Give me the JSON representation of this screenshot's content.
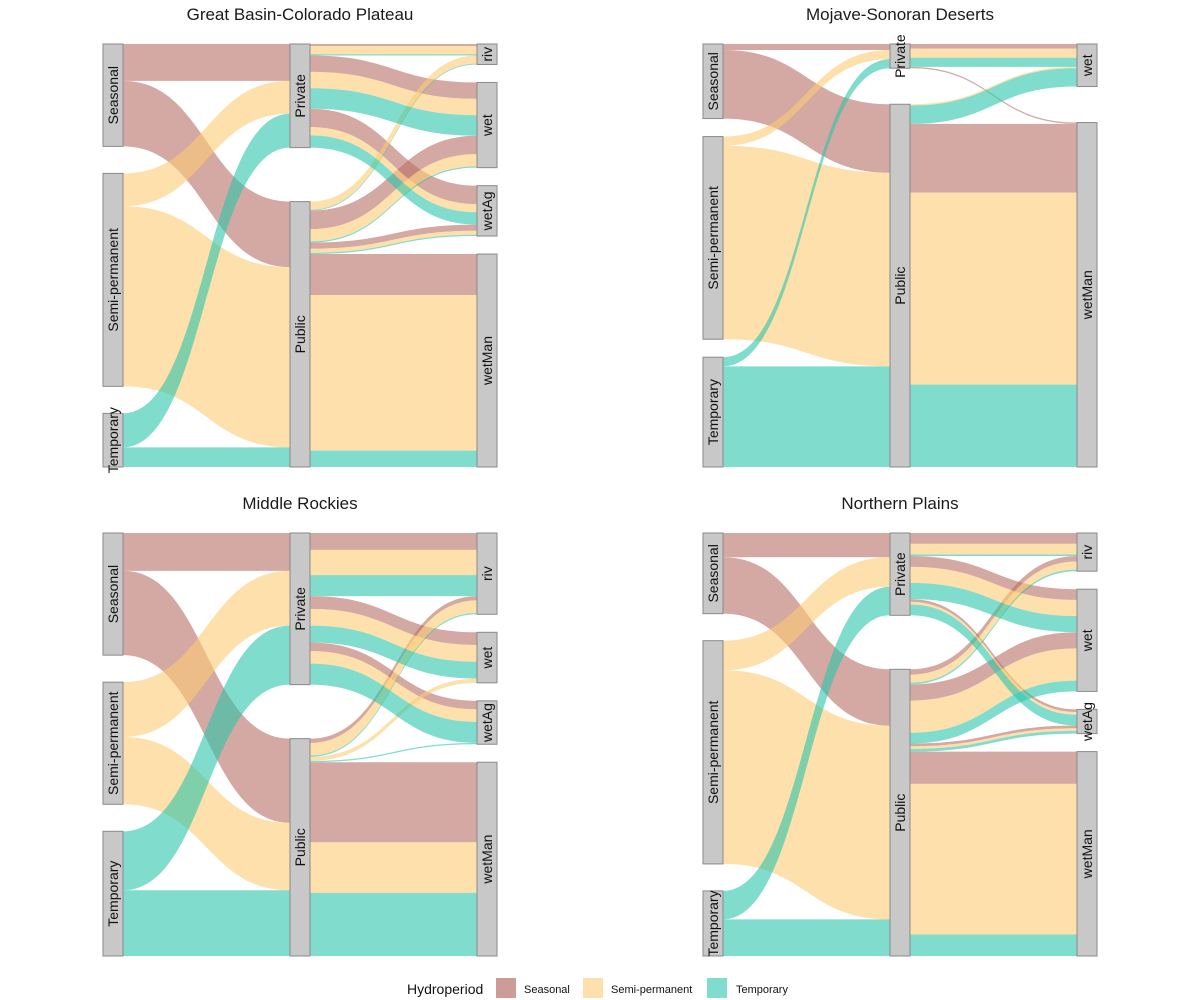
{
  "colors": {
    "Seasonal": "#b9726a",
    "Semi-permanent": "#fbcc73",
    "Temporary": "#2cc4aa",
    "node_fill": "#c8c8c8",
    "node_stroke": "#8a8a8a"
  },
  "legend": {
    "title": "Hydroperiod",
    "items": [
      "Seasonal",
      "Semi-permanent",
      "Temporary"
    ]
  },
  "chart_data": [
    {
      "type": "alluvial",
      "title": "Great Basin-Colorado Plateau",
      "axes": [
        [
          "Seasonal",
          "Semi-permanent",
          "Temporary"
        ],
        [
          "Private",
          "Public"
        ],
        [
          "riv",
          "wet",
          "wetAg",
          "wetMan"
        ]
      ],
      "flows": [
        {
          "hydroperiod": "Seasonal",
          "owner": "Private",
          "target": "riv",
          "value": 0.5
        },
        {
          "hydroperiod": "Seasonal",
          "owner": "Private",
          "target": "wet",
          "value": 4
        },
        {
          "hydroperiod": "Seasonal",
          "owner": "Private",
          "target": "wetAg",
          "value": 4.5
        },
        {
          "hydroperiod": "Seasonal",
          "owner": "Public",
          "target": "wet",
          "value": 4.5
        },
        {
          "hydroperiod": "Seasonal",
          "owner": "Public",
          "target": "wetAg",
          "value": 1.5
        },
        {
          "hydroperiod": "Seasonal",
          "owner": "Public",
          "target": "wetMan",
          "value": 10
        },
        {
          "hydroperiod": "Semi-permanent",
          "owner": "Private",
          "target": "riv",
          "value": 2
        },
        {
          "hydroperiod": "Semi-permanent",
          "owner": "Private",
          "target": "wet",
          "value": 4
        },
        {
          "hydroperiod": "Semi-permanent",
          "owner": "Private",
          "target": "wetAg",
          "value": 2
        },
        {
          "hydroperiod": "Semi-permanent",
          "owner": "Public",
          "target": "riv",
          "value": 2
        },
        {
          "hydroperiod": "Semi-permanent",
          "owner": "Public",
          "target": "wet",
          "value": 3
        },
        {
          "hydroperiod": "Semi-permanent",
          "owner": "Public",
          "target": "wetAg",
          "value": 1
        },
        {
          "hydroperiod": "Semi-permanent",
          "owner": "Public",
          "target": "wetMan",
          "value": 38
        },
        {
          "hydroperiod": "Temporary",
          "owner": "Private",
          "target": "riv",
          "value": 0.3
        },
        {
          "hydroperiod": "Temporary",
          "owner": "Private",
          "target": "wet",
          "value": 5
        },
        {
          "hydroperiod": "Temporary",
          "owner": "Private",
          "target": "wetAg",
          "value": 3
        },
        {
          "hydroperiod": "Temporary",
          "owner": "Public",
          "target": "riv",
          "value": 0.2
        },
        {
          "hydroperiod": "Temporary",
          "owner": "Public",
          "target": "wet",
          "value": 0.3
        },
        {
          "hydroperiod": "Temporary",
          "owner": "Public",
          "target": "wetAg",
          "value": 0.3
        },
        {
          "hydroperiod": "Temporary",
          "owner": "Public",
          "target": "wetMan",
          "value": 4
        }
      ]
    },
    {
      "type": "alluvial",
      "title": "Mojave-Sonoran Deserts",
      "axes": [
        [
          "Seasonal",
          "Semi-permanent",
          "Temporary"
        ],
        [
          "Private",
          "Public"
        ],
        [
          "wet",
          "wetMan"
        ]
      ],
      "flows": [
        {
          "hydroperiod": "Seasonal",
          "owner": "Private",
          "target": "wet",
          "value": 1
        },
        {
          "hydroperiod": "Seasonal",
          "owner": "Private",
          "target": "wetMan",
          "value": 0.3
        },
        {
          "hydroperiod": "Seasonal",
          "owner": "Public",
          "target": "wetMan",
          "value": 15
        },
        {
          "hydroperiod": "Semi-permanent",
          "owner": "Private",
          "target": "wet",
          "value": 2
        },
        {
          "hydroperiod": "Semi-permanent",
          "owner": "Public",
          "target": "wet",
          "value": 0.3
        },
        {
          "hydroperiod": "Semi-permanent",
          "owner": "Public",
          "target": "wetMan",
          "value": 42
        },
        {
          "hydroperiod": "Temporary",
          "owner": "Private",
          "target": "wet",
          "value": 2
        },
        {
          "hydroperiod": "Temporary",
          "owner": "Public",
          "target": "wet",
          "value": 4
        },
        {
          "hydroperiod": "Temporary",
          "owner": "Public",
          "target": "wetMan",
          "value": 18
        }
      ]
    },
    {
      "type": "alluvial",
      "title": "Middle Rockies",
      "axes": [
        [
          "Seasonal",
          "Semi-permanent",
          "Temporary"
        ],
        [
          "Private",
          "Public"
        ],
        [
          "riv",
          "wet",
          "wetAg",
          "wetMan"
        ]
      ],
      "flows": [
        {
          "hydroperiod": "Seasonal",
          "owner": "Private",
          "target": "riv",
          "value": 4
        },
        {
          "hydroperiod": "Seasonal",
          "owner": "Private",
          "target": "wet",
          "value": 3
        },
        {
          "hydroperiod": "Seasonal",
          "owner": "Private",
          "target": "wetAg",
          "value": 2
        },
        {
          "hydroperiod": "Seasonal",
          "owner": "Public",
          "target": "riv",
          "value": 1
        },
        {
          "hydroperiod": "Seasonal",
          "owner": "Public",
          "target": "wetMan",
          "value": 19
        },
        {
          "hydroperiod": "Semi-permanent",
          "owner": "Private",
          "target": "riv",
          "value": 6
        },
        {
          "hydroperiod": "Semi-permanent",
          "owner": "Private",
          "target": "wet",
          "value": 4
        },
        {
          "hydroperiod": "Semi-permanent",
          "owner": "Private",
          "target": "wetAg",
          "value": 3
        },
        {
          "hydroperiod": "Semi-permanent",
          "owner": "Public",
          "target": "riv",
          "value": 3
        },
        {
          "hydroperiod": "Semi-permanent",
          "owner": "Public",
          "target": "wet",
          "value": 1
        },
        {
          "hydroperiod": "Semi-permanent",
          "owner": "Public",
          "target": "wetMan",
          "value": 12
        },
        {
          "hydroperiod": "Temporary",
          "owner": "Private",
          "target": "riv",
          "value": 5
        },
        {
          "hydroperiod": "Temporary",
          "owner": "Private",
          "target": "wet",
          "value": 4
        },
        {
          "hydroperiod": "Temporary",
          "owner": "Private",
          "target": "wetAg",
          "value": 5
        },
        {
          "hydroperiod": "Temporary",
          "owner": "Public",
          "target": "riv",
          "value": 0.3
        },
        {
          "hydroperiod": "Temporary",
          "owner": "Public",
          "target": "wetAg",
          "value": 0.3
        },
        {
          "hydroperiod": "Temporary",
          "owner": "Public",
          "target": "wetMan",
          "value": 15
        }
      ]
    },
    {
      "type": "alluvial",
      "title": "Northern Plains",
      "axes": [
        [
          "Seasonal",
          "Semi-permanent",
          "Temporary"
        ],
        [
          "Private",
          "Public"
        ],
        [
          "riv",
          "wet",
          "wetAg",
          "wetMan"
        ]
      ],
      "flows": [
        {
          "hydroperiod": "Seasonal",
          "owner": "Private",
          "target": "riv",
          "value": 2
        },
        {
          "hydroperiod": "Seasonal",
          "owner": "Private",
          "target": "wet",
          "value": 2
        },
        {
          "hydroperiod": "Seasonal",
          "owner": "Private",
          "target": "wetAg",
          "value": 0.5
        },
        {
          "hydroperiod": "Seasonal",
          "owner": "Public",
          "target": "riv",
          "value": 1
        },
        {
          "hydroperiod": "Seasonal",
          "owner": "Public",
          "target": "wet",
          "value": 3
        },
        {
          "hydroperiod": "Seasonal",
          "owner": "Public",
          "target": "wetAg",
          "value": 0.5
        },
        {
          "hydroperiod": "Seasonal",
          "owner": "Public",
          "target": "wetMan",
          "value": 6
        },
        {
          "hydroperiod": "Semi-permanent",
          "owner": "Private",
          "target": "riv",
          "value": 2
        },
        {
          "hydroperiod": "Semi-permanent",
          "owner": "Private",
          "target": "wet",
          "value": 3
        },
        {
          "hydroperiod": "Semi-permanent",
          "owner": "Private",
          "target": "wetAg",
          "value": 0.5
        },
        {
          "hydroperiod": "Semi-permanent",
          "owner": "Public",
          "target": "riv",
          "value": 1.5
        },
        {
          "hydroperiod": "Semi-permanent",
          "owner": "Public",
          "target": "wet",
          "value": 6
        },
        {
          "hydroperiod": "Semi-permanent",
          "owner": "Public",
          "target": "wetAg",
          "value": 0.5
        },
        {
          "hydroperiod": "Semi-permanent",
          "owner": "Public",
          "target": "wetMan",
          "value": 28
        },
        {
          "hydroperiod": "Temporary",
          "owner": "Private",
          "target": "riv",
          "value": 0.3
        },
        {
          "hydroperiod": "Temporary",
          "owner": "Private",
          "target": "wet",
          "value": 3
        },
        {
          "hydroperiod": "Temporary",
          "owner": "Private",
          "target": "wetAg",
          "value": 2
        },
        {
          "hydroperiod": "Temporary",
          "owner": "Public",
          "target": "riv",
          "value": 0.3
        },
        {
          "hydroperiod": "Temporary",
          "owner": "Public",
          "target": "wet",
          "value": 2
        },
        {
          "hydroperiod": "Temporary",
          "owner": "Public",
          "target": "wetAg",
          "value": 0.5
        },
        {
          "hydroperiod": "Temporary",
          "owner": "Public",
          "target": "wetMan",
          "value": 4
        }
      ]
    }
  ]
}
